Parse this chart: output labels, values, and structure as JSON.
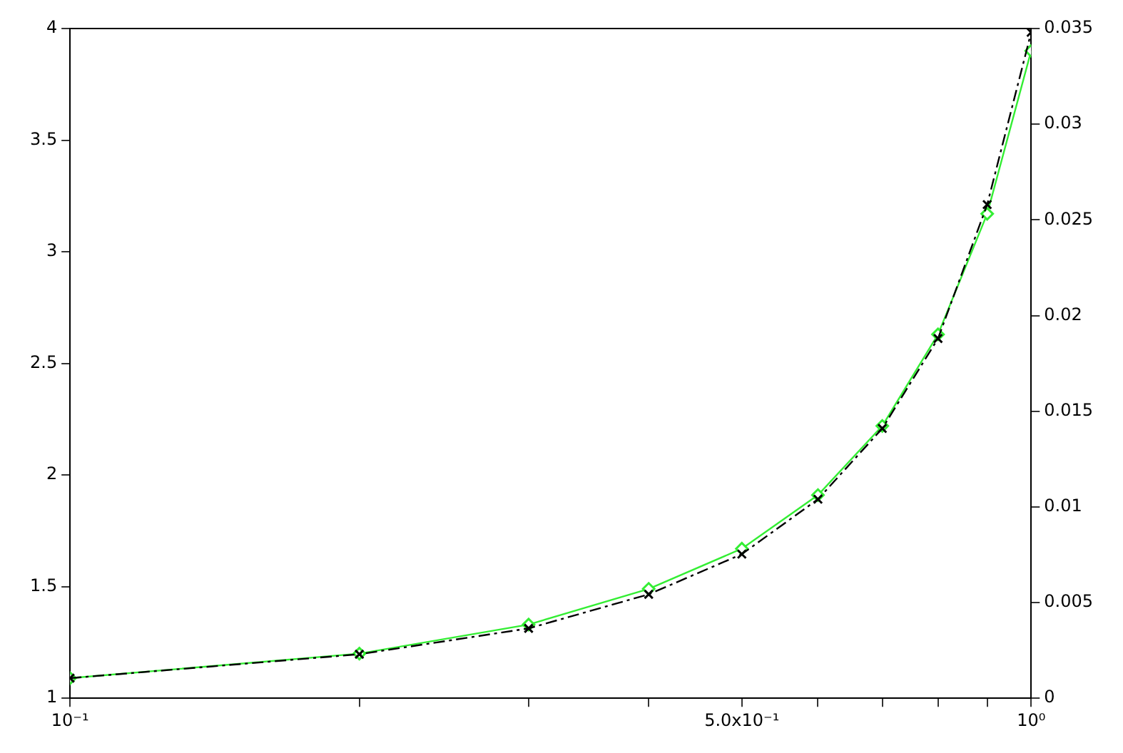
{
  "chart_data": {
    "type": "line",
    "x": [
      0.1,
      0.2,
      0.3,
      0.4,
      0.5,
      0.6,
      0.7,
      0.8,
      0.9,
      1.0
    ],
    "series": [
      {
        "color": "#000000",
        "axis": "y2",
        "marker": "cross",
        "line_style": "dashed",
        "values": [
          0.00105,
          0.0023,
          0.00365,
          0.00543,
          0.00753,
          0.0104,
          0.0141,
          0.0188,
          0.0258,
          0.0348
        ]
      },
      {
        "color": "#33ee33",
        "marker": "diamond",
        "line_style": "solid",
        "values": [
          1.09,
          1.2,
          1.33,
          1.49,
          1.67,
          1.91,
          2.22,
          2.63,
          3.17,
          3.9
        ]
      }
    ],
    "log": "x",
    "grid": false,
    "legend": false,
    "xlim": [
      0.1,
      1
    ],
    "xticks": [
      {
        "value": 0.1,
        "label": "10⁻¹"
      },
      {
        "value": 0.2,
        "label": null
      },
      {
        "value": 0.3,
        "label": null
      },
      {
        "value": 0.4,
        "label": null
      },
      {
        "value": 0.5,
        "label": "5.0x10⁻¹"
      },
      {
        "value": 0.6,
        "label": null
      },
      {
        "value": 0.7,
        "label": null
      },
      {
        "value": 0.8,
        "label": null
      },
      {
        "value": 0.9,
        "label": null
      },
      {
        "value": 1,
        "label": "10⁰"
      }
    ],
    "ylim": [
      1,
      4
    ],
    "yticks": [
      1,
      1.5,
      2,
      2.5,
      3,
      3.5,
      4
    ],
    "y2lim": [
      0,
      0.035
    ],
    "y2ticks": [
      0,
      0.005,
      0.01,
      0.015,
      0.02,
      0.025,
      0.03,
      0.035
    ]
  }
}
